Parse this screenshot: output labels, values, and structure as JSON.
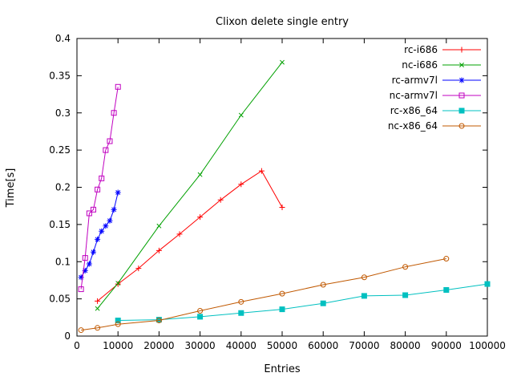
{
  "chart_data": {
    "type": "line",
    "title": "Clixon delete single entry",
    "xlabel": "Entries",
    "ylabel": "Time[s]",
    "xlim": [
      0,
      100000
    ],
    "ylim": [
      0,
      0.4
    ],
    "grid": false,
    "legend_position": "top-right-inside",
    "x_ticks": [
      0,
      10000,
      20000,
      30000,
      40000,
      50000,
      60000,
      70000,
      80000,
      90000,
      100000
    ],
    "x_tick_labels": [
      "0",
      "10000",
      "20000",
      "30000",
      "40000",
      "50000",
      "60000",
      "70000",
      "80000",
      "90000",
      "100000"
    ],
    "y_ticks": [
      0,
      0.05,
      0.1,
      0.15,
      0.2,
      0.25,
      0.3,
      0.35,
      0.4
    ],
    "y_tick_labels": [
      "0",
      "0.05",
      "0.1",
      "0.15",
      "0.2",
      "0.25",
      "0.3",
      "0.35",
      "0.4"
    ],
    "series": [
      {
        "name": "rc-i686",
        "color": "#ff0000",
        "marker": "plus",
        "points": [
          [
            5000,
            0.047
          ],
          [
            10000,
            0.07
          ],
          [
            15000,
            0.091
          ],
          [
            20000,
            0.115
          ],
          [
            25000,
            0.137
          ],
          [
            30000,
            0.16
          ],
          [
            35000,
            0.183
          ],
          [
            40000,
            0.204
          ],
          [
            45000,
            0.222
          ],
          [
            50000,
            0.173
          ]
        ]
      },
      {
        "name": "nc-i686",
        "color": "#00a000",
        "marker": "cross",
        "points": [
          [
            5000,
            0.037
          ],
          [
            10000,
            0.071
          ],
          [
            20000,
            0.148
          ],
          [
            30000,
            0.217
          ],
          [
            40000,
            0.297
          ],
          [
            50000,
            0.368
          ]
        ]
      },
      {
        "name": "rc-armv7l",
        "color": "#0000ff",
        "marker": "asterisk",
        "points": [
          [
            1000,
            0.079
          ],
          [
            2000,
            0.088
          ],
          [
            3000,
            0.097
          ],
          [
            4000,
            0.113
          ],
          [
            5000,
            0.13
          ],
          [
            6000,
            0.141
          ],
          [
            7000,
            0.148
          ],
          [
            8000,
            0.155
          ],
          [
            9000,
            0.17
          ],
          [
            10000,
            0.193
          ]
        ]
      },
      {
        "name": "nc-armv7l",
        "color": "#c000c0",
        "marker": "square-open",
        "points": [
          [
            1000,
            0.063
          ],
          [
            2000,
            0.105
          ],
          [
            3000,
            0.165
          ],
          [
            4000,
            0.17
          ],
          [
            5000,
            0.197
          ],
          [
            6000,
            0.212
          ],
          [
            7000,
            0.25
          ],
          [
            8000,
            0.262
          ],
          [
            9000,
            0.3
          ],
          [
            10000,
            0.335
          ]
        ]
      },
      {
        "name": "rc-x86_64",
        "color": "#00c0c0",
        "marker": "square-filled",
        "points": [
          [
            10000,
            0.021
          ],
          [
            20000,
            0.022
          ],
          [
            30000,
            0.026
          ],
          [
            40000,
            0.031
          ],
          [
            50000,
            0.036
          ],
          [
            60000,
            0.044
          ],
          [
            70000,
            0.054
          ],
          [
            80000,
            0.055
          ],
          [
            90000,
            0.062
          ],
          [
            100000,
            0.07
          ]
        ]
      },
      {
        "name": "nc-x86_64",
        "color": "#c05800",
        "marker": "circle-open",
        "points": [
          [
            1000,
            0.008
          ],
          [
            5000,
            0.011
          ],
          [
            10000,
            0.016
          ],
          [
            20000,
            0.021
          ],
          [
            30000,
            0.034
          ],
          [
            40000,
            0.046
          ],
          [
            50000,
            0.057
          ],
          [
            60000,
            0.069
          ],
          [
            70000,
            0.079
          ],
          [
            80000,
            0.093
          ],
          [
            90000,
            0.104
          ]
        ]
      }
    ]
  }
}
